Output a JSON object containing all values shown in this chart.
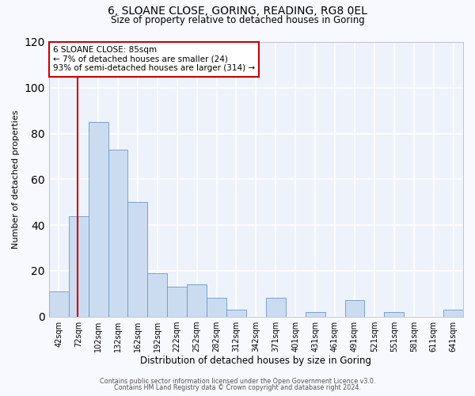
{
  "title": "6, SLOANE CLOSE, GORING, READING, RG8 0EL",
  "subtitle": "Size of property relative to detached houses in Goring",
  "xlabel": "Distribution of detached houses by size in Goring",
  "ylabel": "Number of detached properties",
  "bar_color": "#ccdcf0",
  "bar_edge_color": "#6699cc",
  "background_color": "#eef2fb",
  "grid_color": "#ffffff",
  "ylim": [
    0,
    120
  ],
  "yticks": [
    0,
    20,
    40,
    60,
    80,
    100,
    120
  ],
  "bin_labels": [
    "42sqm",
    "72sqm",
    "102sqm",
    "132sqm",
    "162sqm",
    "192sqm",
    "222sqm",
    "252sqm",
    "282sqm",
    "312sqm",
    "342sqm",
    "371sqm",
    "401sqm",
    "431sqm",
    "461sqm",
    "491sqm",
    "521sqm",
    "551sqm",
    "581sqm",
    "611sqm",
    "641sqm"
  ],
  "bar_values": [
    11,
    44,
    85,
    73,
    50,
    19,
    13,
    14,
    8,
    3,
    0,
    8,
    0,
    2,
    0,
    7,
    0,
    2,
    0,
    0,
    3
  ],
  "bin_edges_values": [
    42,
    72,
    102,
    132,
    162,
    192,
    222,
    252,
    282,
    312,
    342,
    371,
    401,
    431,
    461,
    491,
    521,
    551,
    581,
    611,
    641,
    671
  ],
  "property_size": 85,
  "vline_color": "#cc0000",
  "annotation_title": "6 SLOANE CLOSE: 85sqm",
  "annotation_line1": "← 7% of detached houses are smaller (24)",
  "annotation_line2": "93% of semi-detached houses are larger (314) →",
  "annotation_box_facecolor": "#ffffff",
  "annotation_box_edgecolor": "#cc0000",
  "title_fontsize": 10,
  "subtitle_fontsize": 8.5,
  "ylabel_fontsize": 8,
  "xlabel_fontsize": 8.5,
  "tick_fontsize": 7,
  "annotation_fontsize": 7.5,
  "footer1": "Contains HM Land Registry data © Crown copyright and database right 2024.",
  "footer2": "Contains public sector information licensed under the Open Government Licence v3.0.",
  "footer_fontsize": 5.8,
  "fig_facecolor": "#f8f9ff"
}
